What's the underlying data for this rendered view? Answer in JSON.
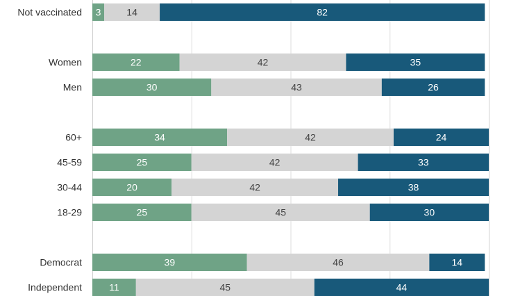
{
  "chart_data": {
    "type": "bar",
    "orientation": "horizontal",
    "stacked": true,
    "categories": [
      "Not vaccinated",
      "Women",
      "Men",
      "60+",
      "45-59",
      "30-44",
      "18-29",
      "Democrat",
      "Independent"
    ],
    "groups": [
      [
        "Not vaccinated"
      ],
      [
        "Women",
        "Men"
      ],
      [
        "60+",
        "45-59",
        "30-44",
        "18-29"
      ],
      [
        "Democrat",
        "Independent"
      ]
    ],
    "series": [
      {
        "values": [
          3,
          22,
          30,
          34,
          25,
          20,
          25,
          39,
          11
        ],
        "color": "#6fa386",
        "label_color": "#ffffff"
      },
      {
        "values": [
          14,
          42,
          43,
          42,
          42,
          42,
          45,
          46,
          45
        ],
        "color": "#d4d4d4",
        "label_color": "#444444"
      },
      {
        "values": [
          82,
          35,
          26,
          24,
          33,
          38,
          30,
          14,
          44
        ],
        "color": "#18597a",
        "label_color": "#ffffff"
      }
    ],
    "xlim": [
      0,
      100
    ],
    "grid": true,
    "legend": "none",
    "title": "",
    "xlabel": "",
    "ylabel": ""
  }
}
